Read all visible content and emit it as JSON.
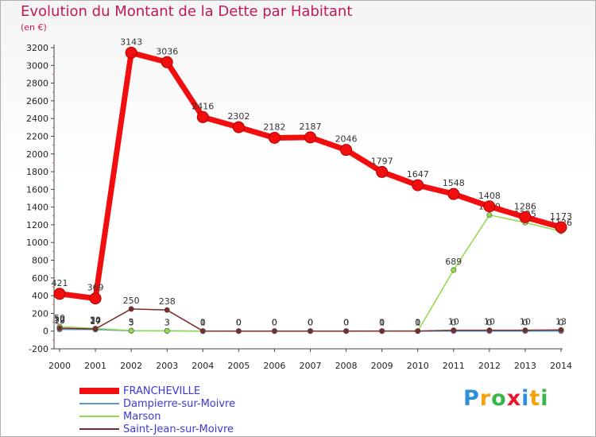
{
  "title": "Evolution du Montant de la Dette par Habitant",
  "unit": "(en €)",
  "logo": {
    "text": "Proxiti",
    "colors": [
      "#2e8fd8",
      "#f5a20a",
      "#3ab54a",
      "#e6192e",
      "#2e8fd8",
      "#f5a20a",
      "#3ab54a"
    ]
  },
  "chart_data": {
    "type": "line",
    "title": "Evolution du Montant de la Dette par Habitant",
    "ylabel": "(en €)",
    "xlabel": "",
    "categories": [
      "2000",
      "2001",
      "2002",
      "2003",
      "2004",
      "2005",
      "2006",
      "2007",
      "2008",
      "2009",
      "2010",
      "2011",
      "2012",
      "2013",
      "2014"
    ],
    "ylim": [
      -200,
      3200
    ],
    "yticks": [
      -200,
      0,
      200,
      400,
      600,
      800,
      1000,
      1200,
      1400,
      1600,
      1800,
      2000,
      2200,
      2400,
      2600,
      2800,
      3000,
      3200
    ],
    "series": [
      {
        "name": "Dampierre-sur-Moivre",
        "color": "#5b9bc9",
        "values": [
          19,
          17,
          3,
          3,
          0,
          0,
          0,
          0,
          0,
          0,
          0,
          0,
          0,
          0,
          0
        ],
        "labels": [
          "19",
          "17",
          "3",
          "3",
          "0",
          "0",
          "0",
          "0",
          "0",
          "0",
          "0",
          "0",
          "0",
          "0",
          "0"
        ]
      },
      {
        "name": "Marson",
        "color": "#8fdb4a",
        "values": [
          50,
          30,
          5,
          3,
          0,
          0,
          0,
          0,
          0,
          0,
          0,
          689,
          1310,
          1225,
          1126
        ],
        "labels": [
          "50",
          "30",
          "5",
          "3",
          "0",
          "0",
          "0",
          "0",
          "0",
          "0",
          "0",
          "689",
          "1310",
          "1225",
          "1126"
        ]
      },
      {
        "name": "Saint-Jean-sur-Moivre",
        "color": "#7b2a2a",
        "values": [
          32,
          24,
          250,
          238,
          1,
          0,
          0,
          0,
          0,
          1,
          1,
          10,
          10,
          10,
          13
        ],
        "labels": [
          "32",
          "24",
          "250",
          "238",
          "1",
          "0",
          "0",
          "0",
          "0",
          "1",
          "1",
          "10",
          "10",
          "10",
          "13"
        ]
      },
      {
        "name": "FRANCHEVILLE",
        "color": "#f20e0e",
        "values": [
          421,
          369,
          3143,
          3036,
          2416,
          2302,
          2182,
          2187,
          2046,
          1797,
          1647,
          1548,
          1408,
          1286,
          1173
        ],
        "labels": [
          "421",
          "369",
          "3143",
          "3036",
          "2416",
          "2302",
          "2182",
          "2187",
          "2046",
          "1797",
          "1647",
          "1548",
          "1408",
          "1286",
          "1173"
        ]
      }
    ],
    "legend": [
      "FRANCHEVILLE",
      "Dampierre-sur-Moivre",
      "Marson",
      "Saint-Jean-sur-Moivre"
    ],
    "legend_position": "bottom-left",
    "grid": false
  }
}
